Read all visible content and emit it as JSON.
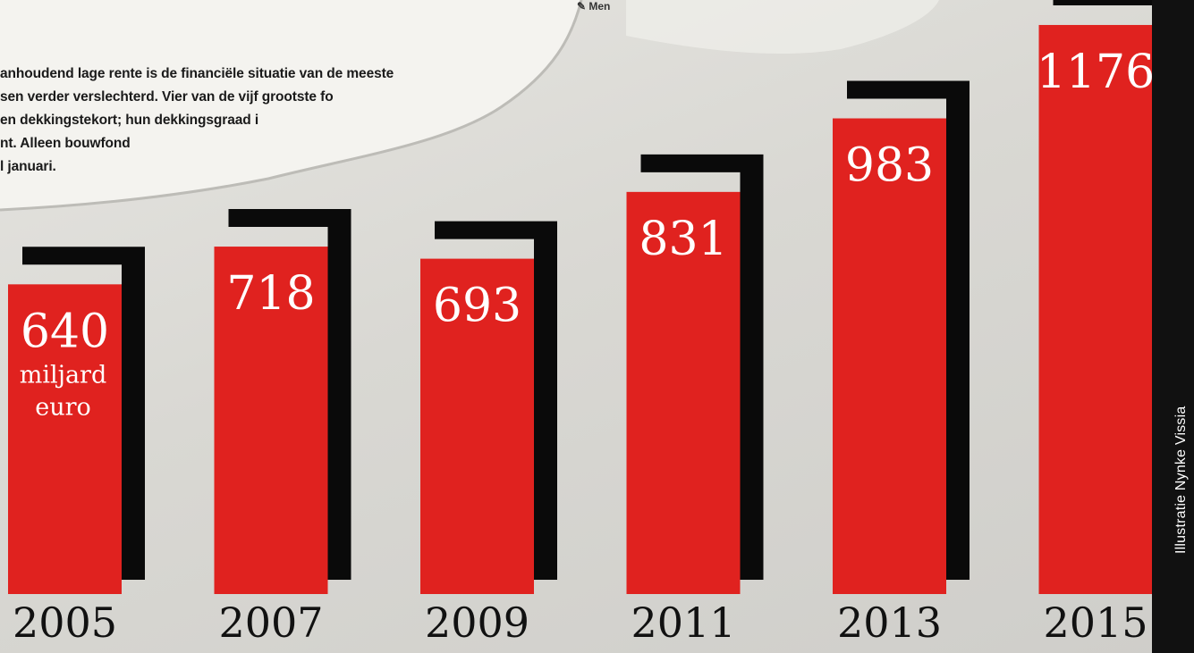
{
  "snippet": {
    "lines": [
      "anhoudend lage rente is de financiële situatie van de meeste",
      "sen verder verslechterd. Vier van de vijf grootste fo",
      "en dekkingstekort; hun dekkingsgraad i",
      "nt. Alleen bouwfond",
      "l januari."
    ],
    "menu_fragment": "Men"
  },
  "credit": "Illustratie Nynke Vissia",
  "colors": {
    "bar": "#e0221f",
    "shadow": "#0a0a0a",
    "label": "#ffffff",
    "year": "#111111"
  },
  "chart_data": {
    "type": "bar",
    "categories": [
      "2005",
      "2007",
      "2009",
      "2011",
      "2013",
      "2015"
    ],
    "values": [
      640,
      718,
      693,
      831,
      983,
      1176
    ],
    "unit_label": [
      "miljard",
      "euro"
    ],
    "title": "",
    "xlabel": "",
    "ylabel": "",
    "grid": false
  }
}
